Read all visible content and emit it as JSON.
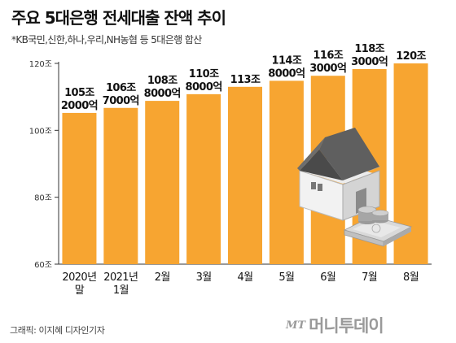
{
  "header": {
    "title": "주요 5대은행 전세대출 잔액 추이",
    "subtitle": "*KB국민,신한,하나,우리,NH농협 등 5대은행 합산"
  },
  "footer": {
    "credit": "그래픽: 이지혜 디자인기자",
    "logo_mark": "MT",
    "logo_name": "머니투데이"
  },
  "colors": {
    "bar": "#F7A531",
    "axis": "#333333",
    "grid": "#bbbbbb"
  },
  "icons": [
    "house-icon",
    "coin-stack-icon",
    "banknote-stack-icon"
  ],
  "chart_data": {
    "type": "bar",
    "title": "주요 5대은행 전세대출 잔액 추이",
    "subtitle": "*KB국민,신한,하나,우리,NH농협 등 5대은행 합산",
    "xlabel": "",
    "ylabel": "",
    "ylim": [
      60,
      120
    ],
    "yticks": [
      {
        "value": 60,
        "label": "60조"
      },
      {
        "value": 80,
        "label": "80조"
      },
      {
        "value": 100,
        "label": "100조"
      },
      {
        "value": 120,
        "label": "120조"
      }
    ],
    "grid": false,
    "categories": [
      {
        "line1": "2020년",
        "line2": "말"
      },
      {
        "line1": "2021년",
        "line2": "1월"
      },
      {
        "line1": "2월",
        "line2": ""
      },
      {
        "line1": "3월",
        "line2": ""
      },
      {
        "line1": "4월",
        "line2": ""
      },
      {
        "line1": "5월",
        "line2": ""
      },
      {
        "line1": "6월",
        "line2": ""
      },
      {
        "line1": "7월",
        "line2": ""
      },
      {
        "line1": "8월",
        "line2": ""
      }
    ],
    "values": [
      105.2,
      106.7,
      108.8,
      110.8,
      113,
      114.8,
      116.3,
      118.3,
      120
    ],
    "data_labels": [
      {
        "line1": "105조",
        "line2": "2000억"
      },
      {
        "line1": "106조",
        "line2": "7000억"
      },
      {
        "line1": "108조",
        "line2": "8000억"
      },
      {
        "line1": "110조",
        "line2": "8000억"
      },
      {
        "line1": "113조",
        "line2": ""
      },
      {
        "line1": "114조",
        "line2": "8000억"
      },
      {
        "line1": "116조",
        "line2": "3000억"
      },
      {
        "line1": "118조",
        "line2": "3000억"
      },
      {
        "line1": "120조",
        "line2": ""
      }
    ]
  }
}
